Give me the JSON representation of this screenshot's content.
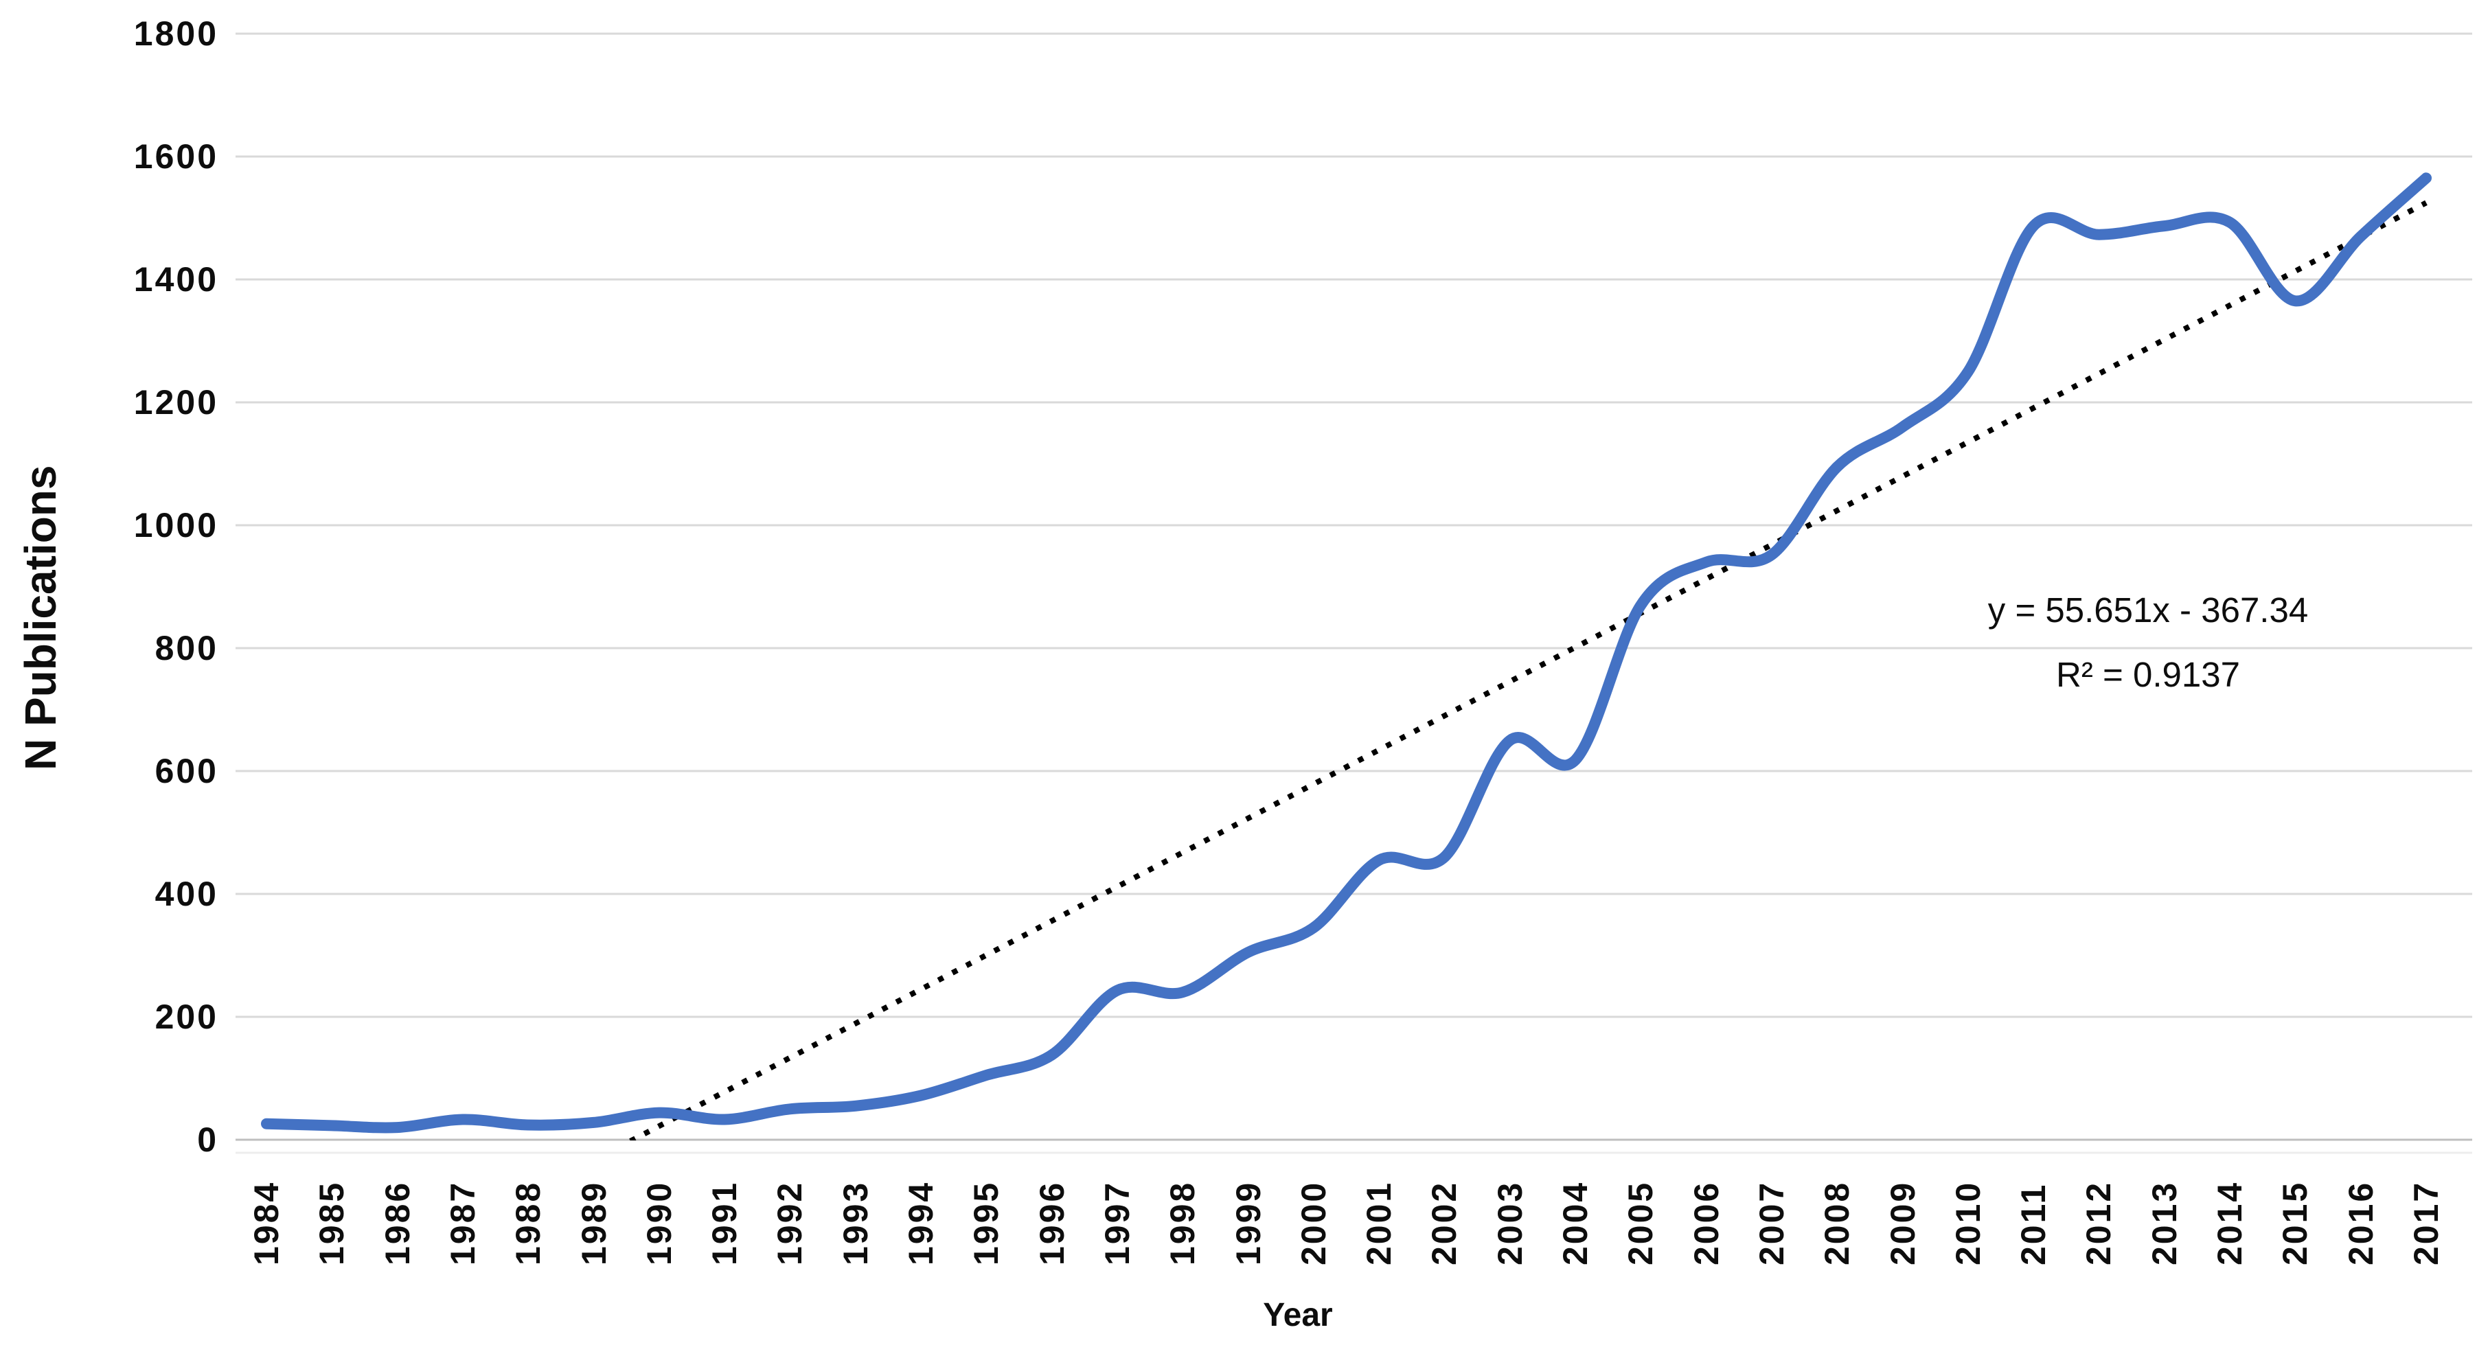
{
  "chart_data": {
    "type": "line",
    "title": "",
    "xlabel": "Year",
    "ylabel": "N Publications",
    "categories": [
      "1984",
      "1985",
      "1986",
      "1987",
      "1988",
      "1989",
      "1990",
      "1991",
      "1992",
      "1993",
      "1994",
      "1995",
      "1996",
      "1997",
      "1998",
      "1999",
      "2000",
      "2001",
      "2002",
      "2003",
      "2004",
      "2005",
      "2006",
      "2007",
      "2008",
      "2009",
      "2010",
      "2011",
      "2012",
      "2013",
      "2014",
      "2015",
      "2016",
      "2017"
    ],
    "series": [
      {
        "name": "N Publications",
        "values": [
          26,
          23,
          20,
          33,
          24,
          28,
          44,
          33,
          50,
          55,
          72,
          105,
          138,
          243,
          240,
          305,
          345,
          455,
          460,
          650,
          618,
          870,
          940,
          952,
          1095,
          1160,
          1250,
          1487,
          1473,
          1487,
          1493,
          1365,
          1470,
          1565
        ],
        "color": "#4472C4",
        "smooth": true
      }
    ],
    "trendline": {
      "slope": 55.651,
      "intercept": -367.34,
      "x_is_1_based_index": true,
      "style": "dotted",
      "color": "#000000",
      "label_line1": "y = 55.651x - 367.34",
      "label_line2": "R² = 0.9137"
    },
    "ylim": [
      0,
      1800
    ],
    "ytick_interval": 200,
    "grid": "horizontal",
    "legend": "none",
    "colors": {
      "gridline": "#D9D9D9",
      "axis_line": "#BFBFBF",
      "axis_shadow": "#EDEDED",
      "text": "#0d0d0d",
      "background": "#ffffff"
    }
  }
}
